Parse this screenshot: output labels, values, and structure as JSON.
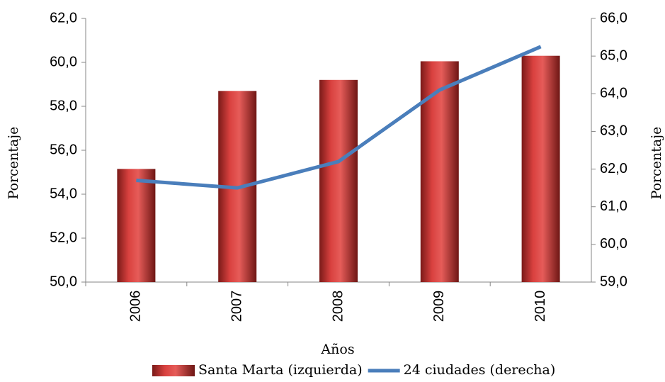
{
  "chart_data": {
    "type": "bar-line",
    "categories": [
      "2006",
      "2007",
      "2008",
      "2009",
      "2010"
    ],
    "x_label": "Años",
    "y_label": "Porcentaje",
    "y2_label": "Porcentaje",
    "series": [
      {
        "name": "Santa Marta (izquierda)",
        "type": "bar",
        "color": "#d9413f",
        "values": [
          55.15,
          58.7,
          59.2,
          60.05,
          60.3
        ]
      },
      {
        "name": "24 ciudades (derecha)",
        "type": "line",
        "axis": "y2",
        "color": "#4a7ebb",
        "values": [
          61.7,
          61.5,
          62.2,
          64.1,
          65.25
        ]
      }
    ],
    "ylim": [
      50,
      62
    ],
    "yticks": [
      {
        "value": 50,
        "label": "50,0"
      },
      {
        "value": 52,
        "label": "52,0"
      },
      {
        "value": 54,
        "label": "54,0"
      },
      {
        "value": 56,
        "label": "56,0"
      },
      {
        "value": 58,
        "label": "58,0"
      },
      {
        "value": 60,
        "label": "60,0"
      },
      {
        "value": 62,
        "label": "62,0"
      }
    ],
    "y2lim": [
      59,
      66
    ],
    "y2ticks": [
      {
        "value": 59,
        "label": "59,0"
      },
      {
        "value": 60,
        "label": "60,0"
      },
      {
        "value": 61,
        "label": "61,0"
      },
      {
        "value": 62,
        "label": "62,0"
      },
      {
        "value": 63,
        "label": "63,0"
      },
      {
        "value": 64,
        "label": "64,0"
      },
      {
        "value": 65,
        "label": "65,0"
      },
      {
        "value": 66,
        "label": "66,0"
      }
    ],
    "grid": false,
    "legend": "bottom"
  }
}
